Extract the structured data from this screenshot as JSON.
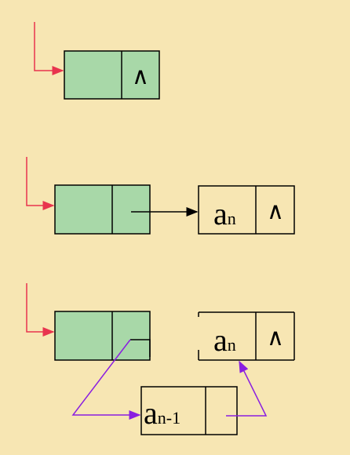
{
  "nodes": {
    "an_letter": "a",
    "an_sub": "n",
    "an1_letter": "a",
    "an1_sub": "n-1",
    "null_symbol": "∧"
  },
  "colors": {
    "background": "#f7e6b3",
    "node_fill": "#a8d8a8",
    "head_pointer": "#e8344e",
    "link_pointer": "#000000",
    "insert_pointer": "#8a1ee0"
  }
}
